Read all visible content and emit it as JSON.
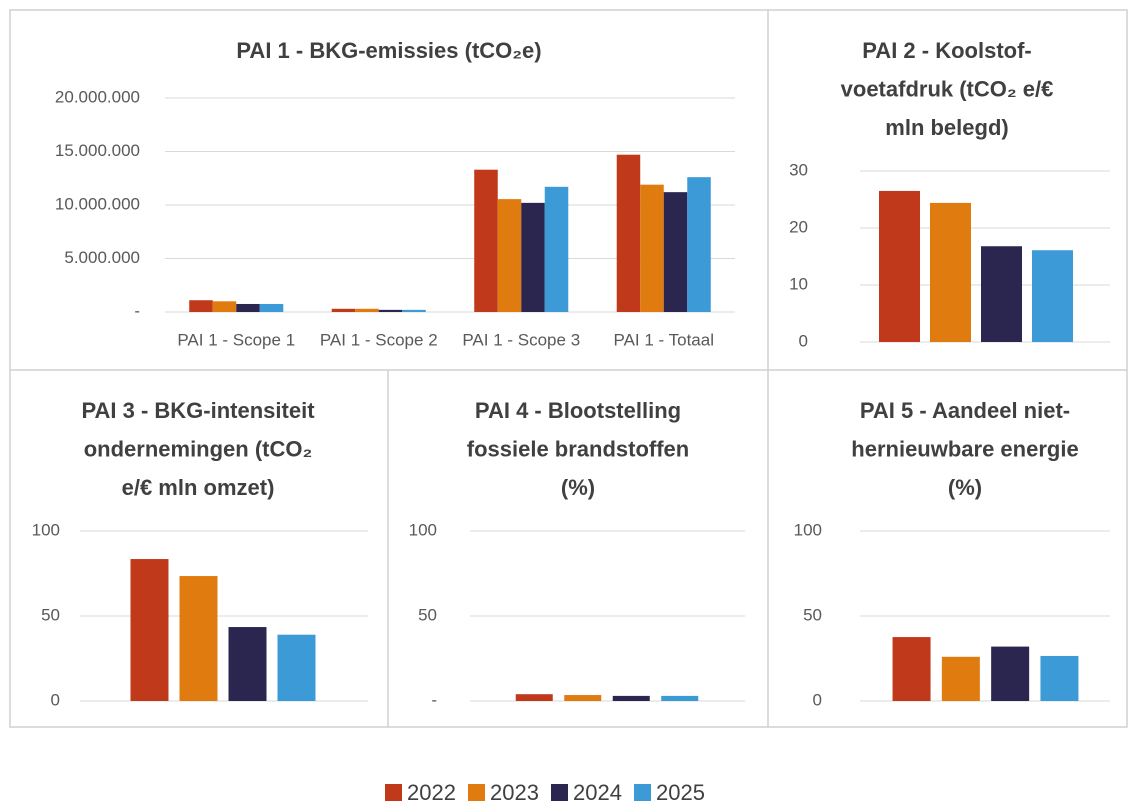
{
  "chart_data": [
    {
      "type": "bar",
      "title": [
        "PAI 1 - BKG-emissies (tCO₂e)"
      ],
      "categories": [
        "PAI 1 - Scope 1",
        "PAI 1 - Scope 2",
        "PAI 1 - Scope 3",
        "PAI 1 - Totaal"
      ],
      "series": [
        {
          "name": "2022",
          "color": "#c0391b",
          "values": [
            1100000,
            300000,
            13300000,
            14700000
          ]
        },
        {
          "name": "2023",
          "color": "#e07b10",
          "values": [
            1000000,
            300000,
            10550000,
            11900000
          ]
        },
        {
          "name": "2024",
          "color": "#2b2650",
          "values": [
            750000,
            200000,
            10200000,
            11200000
          ]
        },
        {
          "name": "2025",
          "color": "#3c9ad6",
          "values": [
            750000,
            200000,
            11700000,
            12600000
          ]
        }
      ],
      "ylim": [
        0,
        20000000
      ],
      "yticks": [
        {
          "value": 0,
          "label": "-"
        },
        {
          "value": 5000000,
          "label": "5.000.000"
        },
        {
          "value": 10000000,
          "label": "10.000.000"
        },
        {
          "value": 15000000,
          "label": "15.000.000"
        },
        {
          "value": 20000000,
          "label": "20.000.000"
        }
      ],
      "grid": true
    },
    {
      "type": "bar",
      "title": [
        "PAI 2 - Koolstof-",
        "voetafdruk (tCO₂ e/€",
        "mln belegd)"
      ],
      "series": [
        {
          "values": [
            26.5
          ]
        },
        {
          "values": [
            24.4
          ]
        },
        {
          "values": [
            16.8
          ]
        },
        {
          "values": [
            16.1
          ]
        }
      ],
      "ylim": [
        0,
        30
      ],
      "yticks": [
        0,
        10,
        20,
        30
      ],
      "grid": true
    },
    {
      "type": "bar",
      "title": [
        "PAI 3 - BKG-intensiteit",
        "ondernemingen (tCO₂",
        "e/€ mln omzet)"
      ],
      "series": [
        {
          "values": [
            83.5
          ]
        },
        {
          "values": [
            73.5
          ]
        },
        {
          "values": [
            43.5
          ]
        },
        {
          "values": [
            39
          ]
        }
      ],
      "ylim": [
        0,
        100
      ],
      "yticks": [
        0,
        50,
        100
      ],
      "grid": true
    },
    {
      "type": "bar",
      "title": [
        "PAI 4 - Blootstelling",
        "fossiele brandstoffen",
        "(%)"
      ],
      "series": [
        {
          "values": [
            4
          ]
        },
        {
          "values": [
            3.5
          ]
        },
        {
          "values": [
            3
          ]
        },
        {
          "values": [
            3
          ]
        }
      ],
      "ylim": [
        0,
        100
      ],
      "yticks": [
        {
          "value": 0,
          "label": "-"
        },
        50,
        100
      ],
      "grid": true
    },
    {
      "type": "bar",
      "title": [
        "PAI 5 - Aandeel niet-",
        "hernieuwbare energie",
        "(%)"
      ],
      "series": [
        {
          "values": [
            37.6
          ]
        },
        {
          "values": [
            26
          ]
        },
        {
          "values": [
            32
          ]
        },
        {
          "values": [
            26.5
          ]
        }
      ],
      "ylim": [
        0,
        100
      ],
      "yticks": [
        0,
        50,
        100
      ],
      "grid": true
    }
  ]
}
